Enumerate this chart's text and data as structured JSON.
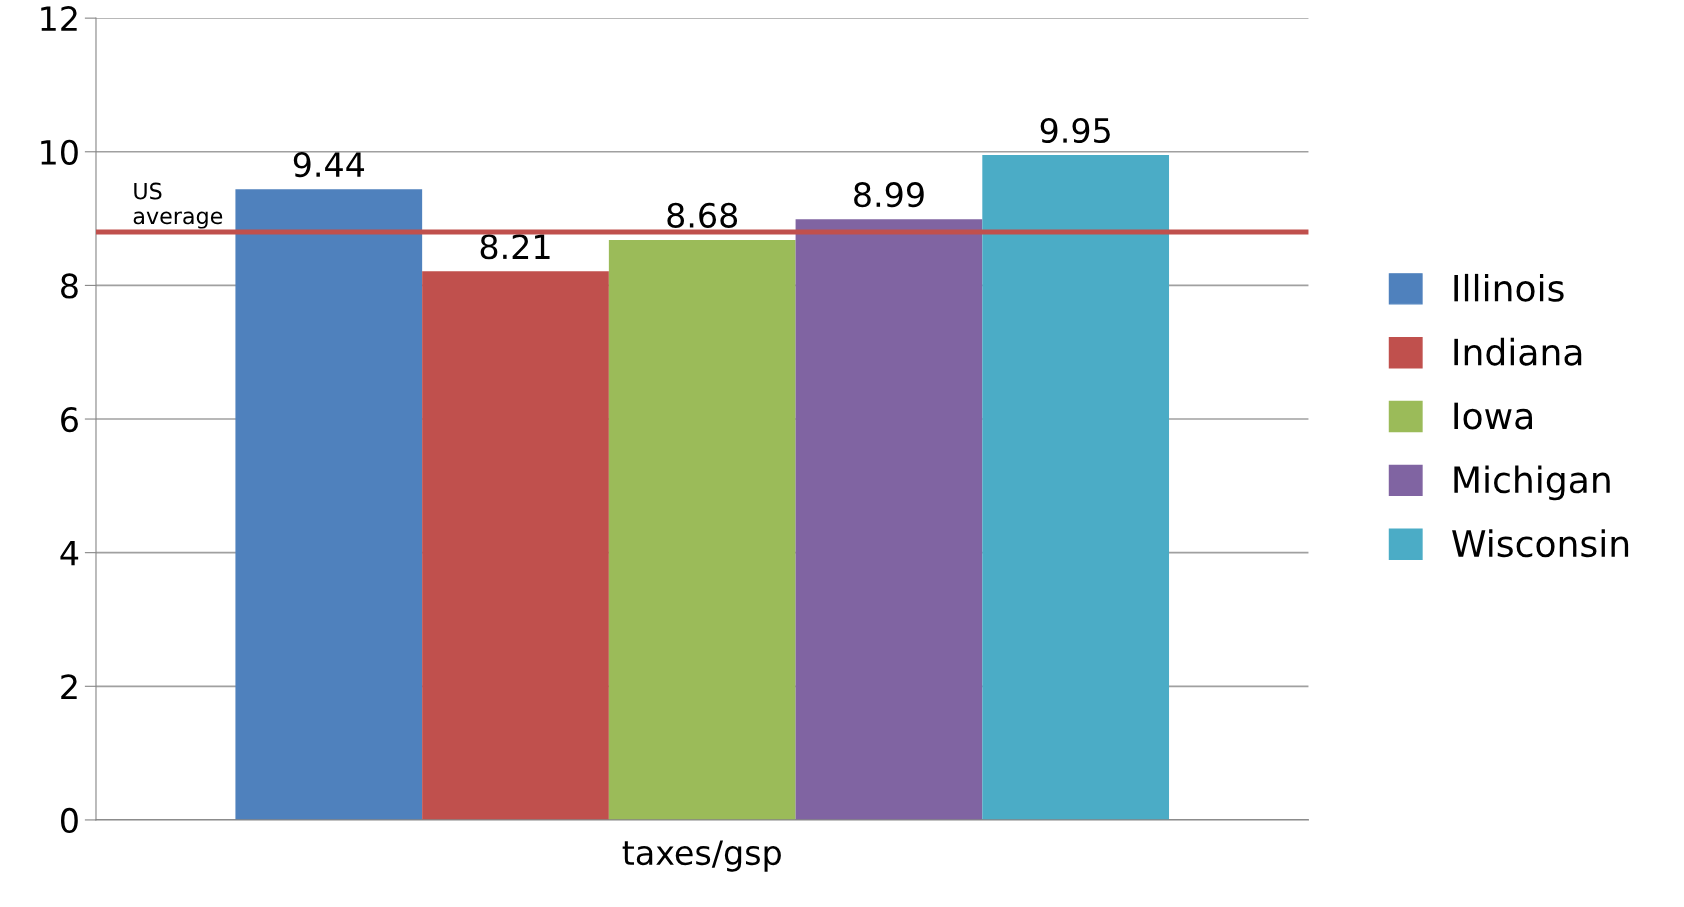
{
  "chart_data": {
    "type": "bar",
    "categories": [
      "taxes/gsp"
    ],
    "series": [
      {
        "name": "Illinois",
        "color": "#4f81bd",
        "values": [
          9.44
        ]
      },
      {
        "name": "Indiana",
        "color": "#c0504d",
        "values": [
          8.21
        ]
      },
      {
        "name": "Iowa",
        "color": "#9bbb59",
        "values": [
          8.68
        ]
      },
      {
        "name": "Michigan",
        "color": "#8064a2",
        "values": [
          8.99
        ]
      },
      {
        "name": "Wisconsin",
        "color": "#4bacc6",
        "values": [
          9.95
        ]
      }
    ],
    "ylim": [
      0,
      12
    ],
    "yticks": [
      0,
      2,
      4,
      6,
      8,
      10,
      12
    ],
    "grid": "y",
    "legend": "right",
    "data_labels": true,
    "ref_lines": [
      {
        "axis": "y",
        "value": 8.8,
        "label": "US\naverage",
        "color": "#c0504d"
      }
    ]
  }
}
